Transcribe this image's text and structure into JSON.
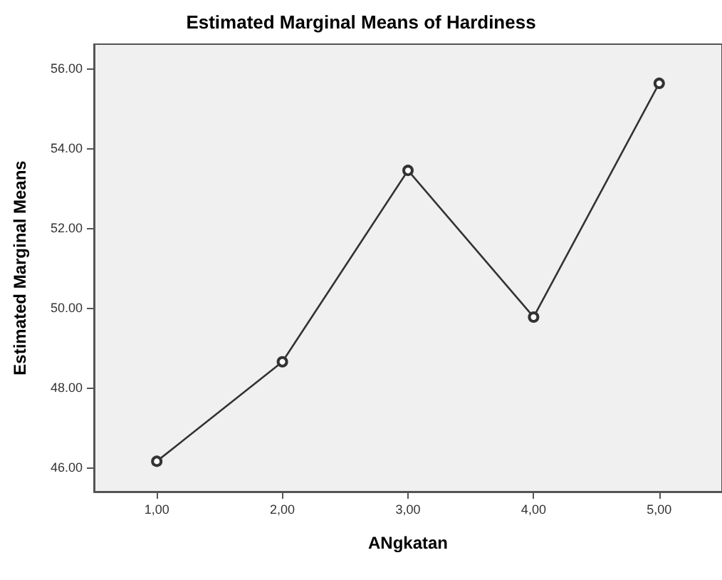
{
  "chart_data": {
    "type": "line",
    "title": "Estimated Marginal Means of Hardiness",
    "xlabel": "ANgkatan",
    "ylabel": "Estimated Marginal Means",
    "categories": [
      "1,00",
      "2,00",
      "3,00",
      "4,00",
      "5,00"
    ],
    "series": [
      {
        "color": "#333333",
        "values": [
          46.16,
          48.65,
          53.44,
          49.77,
          55.62
        ]
      }
    ],
    "ylim": [
      45.4,
      56.6
    ],
    "yticks": [
      {
        "value": 46,
        "label": "46.00"
      },
      {
        "value": 48,
        "label": "48.00"
      },
      {
        "value": 50,
        "label": "50.00"
      },
      {
        "value": 52,
        "label": "52.00"
      },
      {
        "value": 54,
        "label": "54.00"
      },
      {
        "value": 56,
        "label": "56.00"
      }
    ],
    "grid": false,
    "marker": "circle",
    "line_style": "solid"
  }
}
